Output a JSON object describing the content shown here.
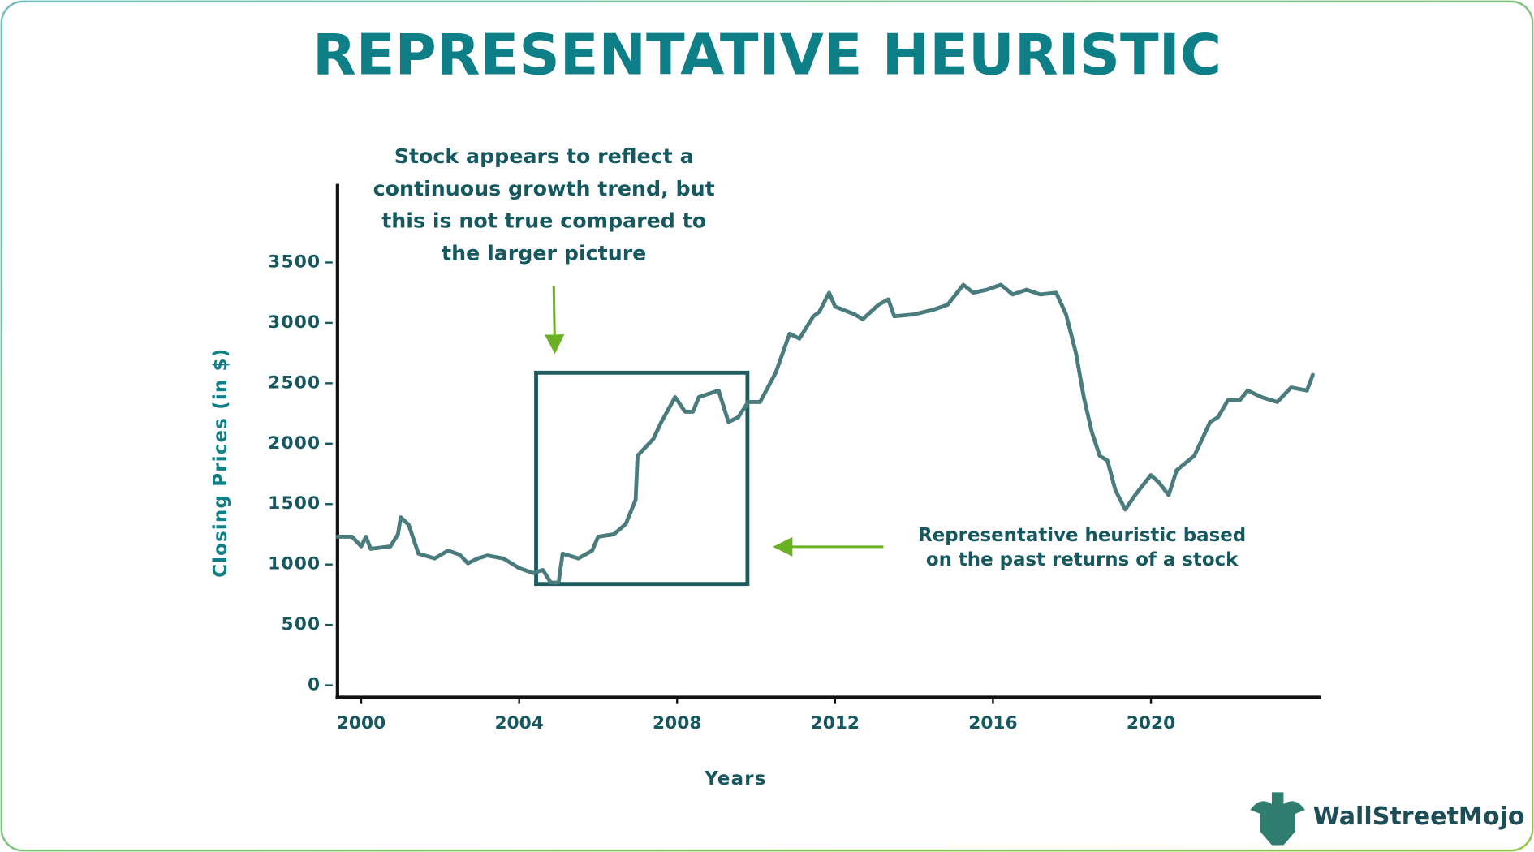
{
  "chart_data": {
    "type": "line",
    "title": "REPRESENTATIVE HEURISTIC",
    "x_label": "Years",
    "y_label": "Closing Prices (in $)",
    "xlim": [
      1999.4,
      2024.3
    ],
    "ylim": [
      -100,
      4150
    ],
    "xticks": [
      2000,
      2004,
      2008,
      2012,
      2016,
      2020
    ],
    "yticks": [
      0,
      500,
      1000,
      1500,
      2000,
      2500,
      3000,
      3500
    ],
    "series": [
      {
        "name": "Closing price",
        "color": "#4a7c7e",
        "x": [
          1999.4,
          1999.77,
          2000,
          2000.12,
          2000.24,
          2000.74,
          2000.93,
          2001,
          2001.2,
          2001.45,
          2001.86,
          2002.2,
          2002.5,
          2002.7,
          2002.95,
          2003.2,
          2003.6,
          2004,
          2004.35,
          2004.6,
          2004.8,
          2005,
          2005.1,
          2005.5,
          2005.85,
          2006,
          2006.4,
          2006.7,
          2006.95,
          2007,
          2007.4,
          2007.6,
          2007.95,
          2008.2,
          2008.4,
          2008.55,
          2009.05,
          2009.3,
          2009.55,
          2009.8,
          2010.1,
          2010.5,
          2010.85,
          2011.1,
          2011.45,
          2011.6,
          2011.85,
          2012,
          2012.5,
          2012.7,
          2013.1,
          2013.35,
          2013.5,
          2014,
          2014.5,
          2014.85,
          2015.25,
          2015.5,
          2015.85,
          2016.2,
          2016.5,
          2016.85,
          2017.2,
          2017.6,
          2017.85,
          2018.1,
          2018.3,
          2018.5,
          2018.7,
          2018.9,
          2019.1,
          2019.35,
          2019.6,
          2020,
          2020.2,
          2020.45,
          2020.65,
          2021.1,
          2021.5,
          2021.7,
          2021.95,
          2022.25,
          2022.45,
          2022.8,
          2023.2,
          2023.55,
          2023.95,
          2024.1
        ],
        "values": [
          1230,
          1230,
          1150,
          1230,
          1130,
          1150,
          1250,
          1390,
          1330,
          1090,
          1050,
          1115,
          1080,
          1010,
          1050,
          1075,
          1050,
          970,
          930,
          955,
          850,
          850,
          1090,
          1050,
          1115,
          1230,
          1250,
          1335,
          1535,
          1900,
          2040,
          2180,
          2385,
          2265,
          2265,
          2385,
          2440,
          2180,
          2220,
          2345,
          2345,
          2590,
          2910,
          2870,
          3055,
          3090,
          3250,
          3135,
          3070,
          3030,
          3150,
          3195,
          3055,
          3070,
          3110,
          3150,
          3315,
          3250,
          3275,
          3315,
          3235,
          3275,
          3235,
          3250,
          3070,
          2750,
          2385,
          2100,
          1900,
          1860,
          1615,
          1455,
          1575,
          1740,
          1680,
          1575,
          1780,
          1900,
          2180,
          2220,
          2360,
          2360,
          2440,
          2385,
          2345,
          2465,
          2440,
          2570
        ]
      }
    ],
    "annotations": [
      {
        "lines": [
          "Stock appears to reflect a",
          "continuous growth trend, but",
          "this is not true compared to",
          "the larger picture"
        ]
      },
      {
        "lines": [
          "Representative heuristic based",
          "on the past returns of a stock"
        ]
      }
    ],
    "logo": "WallStreetMojo"
  }
}
